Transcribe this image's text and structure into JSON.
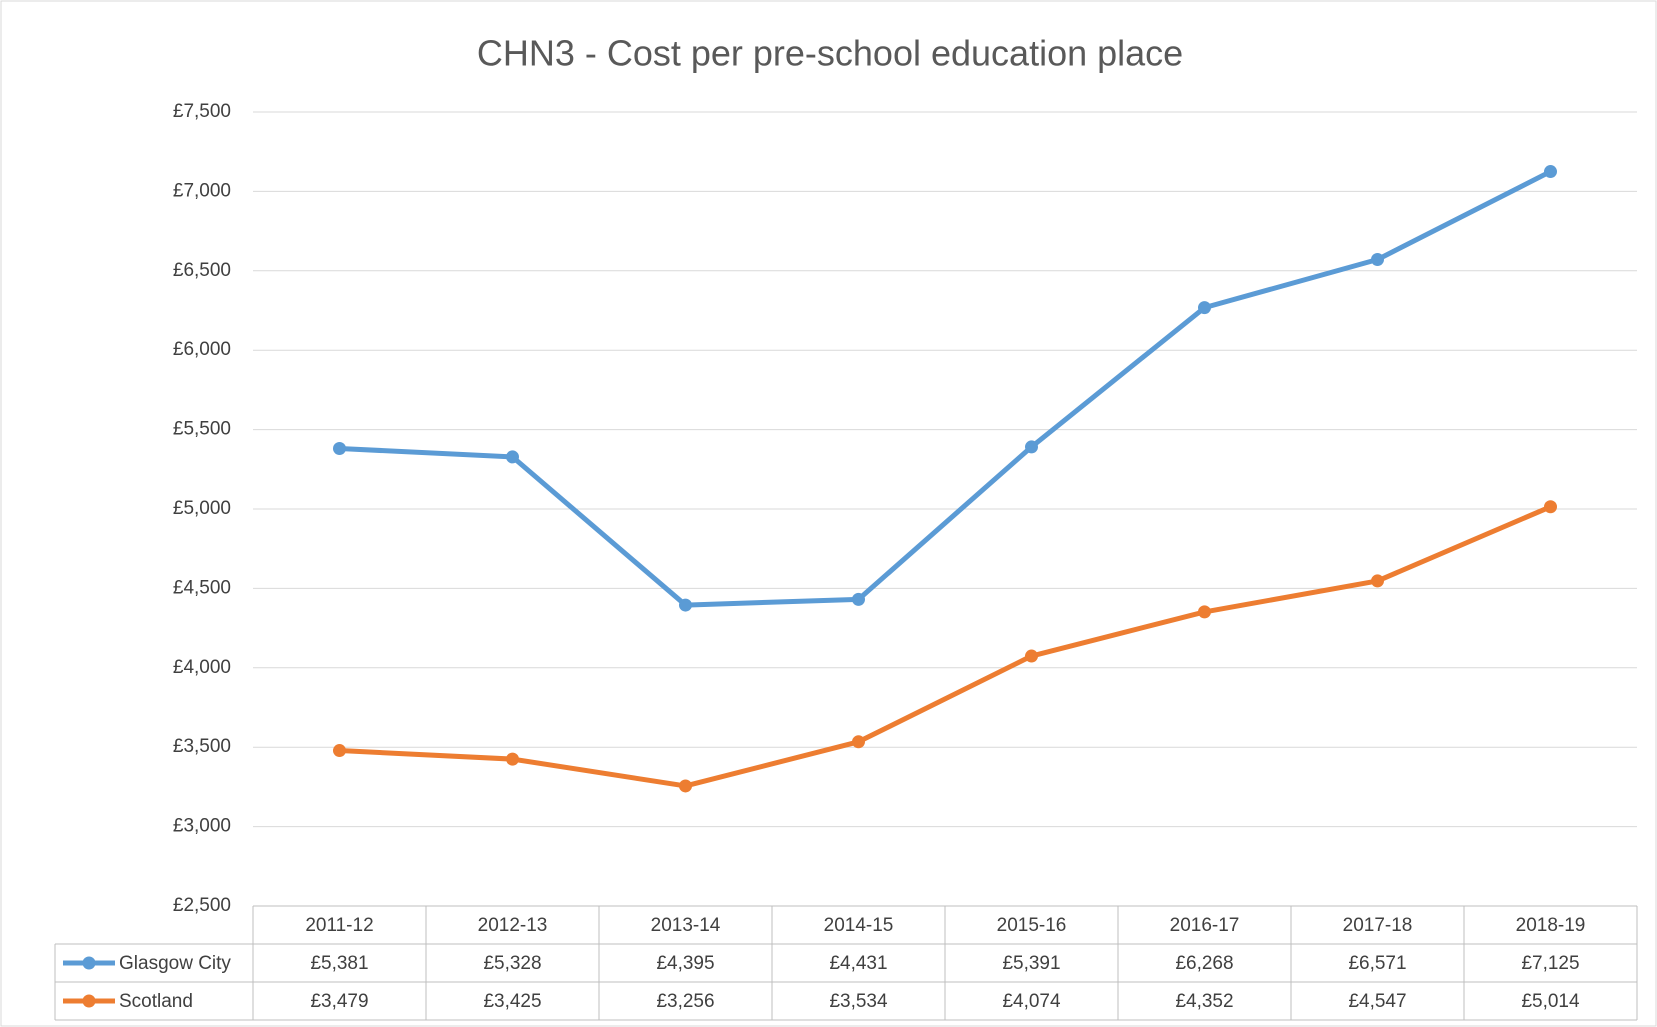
{
  "chart_data": {
    "type": "line",
    "title": "CHN3 - Cost per pre-school education place",
    "categories": [
      "2011-12",
      "2012-13",
      "2013-14",
      "2014-15",
      "2015-16",
      "2016-17",
      "2017-18",
      "2018-19"
    ],
    "series": [
      {
        "name": "Glasgow City",
        "color": "#5b9bd5",
        "values": [
          5381,
          5328,
          4395,
          4431,
          5391,
          6268,
          6571,
          7125
        ],
        "value_labels": [
          "£5,381",
          "£5,328",
          "£4,395",
          "£4,431",
          "£5,391",
          "£6,268",
          "£6,571",
          "£7,125"
        ]
      },
      {
        "name": "Scotland",
        "color": "#ed7d31",
        "values": [
          3479,
          3425,
          3256,
          3534,
          4074,
          4352,
          4547,
          5014
        ],
        "value_labels": [
          "£3,479",
          "£3,425",
          "£3,256",
          "£3,534",
          "£4,074",
          "£4,352",
          "£4,547",
          "£5,014"
        ]
      }
    ],
    "ylim": [
      2500,
      7500
    ],
    "yticks": [
      {
        "value": 2500,
        "label": "£2,500"
      },
      {
        "value": 3000,
        "label": "£3,000"
      },
      {
        "value": 3500,
        "label": "£3,500"
      },
      {
        "value": 4000,
        "label": "£4,000"
      },
      {
        "value": 4500,
        "label": "£4,500"
      },
      {
        "value": 5000,
        "label": "£5,000"
      },
      {
        "value": 5500,
        "label": "£5,500"
      },
      {
        "value": 6000,
        "label": "£6,000"
      },
      {
        "value": 6500,
        "label": "£6,500"
      },
      {
        "value": 7000,
        "label": "£7,000"
      },
      {
        "value": 7500,
        "label": "£7,500"
      }
    ],
    "grid": true,
    "data_table": true
  }
}
